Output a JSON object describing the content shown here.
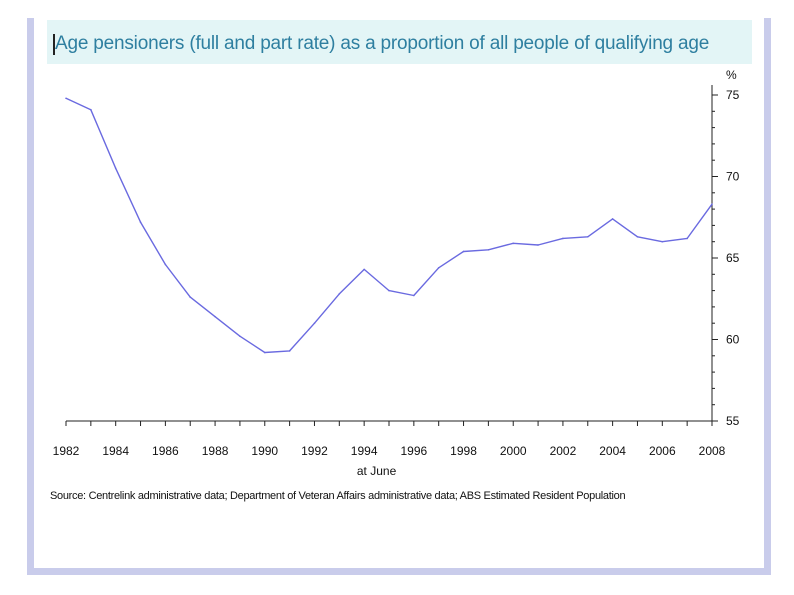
{
  "chart_data": {
    "type": "line",
    "title": "Age pensioners (full and part rate) as a proportion of all people of qualifying age",
    "xlabel": "at June",
    "ylabel": "%",
    "ylim": [
      55,
      75
    ],
    "xlim": [
      1982,
      2008
    ],
    "y_ticks": [
      55,
      60,
      65,
      70,
      75
    ],
    "x_ticks": [
      1982,
      1984,
      1986,
      1988,
      1990,
      1992,
      1994,
      1996,
      1998,
      2000,
      2002,
      2004,
      2006,
      2008
    ],
    "grid": false,
    "series": [
      {
        "name": "Age pensioners",
        "color": "#6a6ae0",
        "x": [
          1982,
          1983,
          1984,
          1985,
          1986,
          1987,
          1988,
          1989,
          1990,
          1991,
          1992,
          1993,
          1994,
          1995,
          1996,
          1997,
          1998,
          1999,
          2000,
          2001,
          2002,
          2003,
          2004,
          2005,
          2006,
          2007,
          2008
        ],
        "values": [
          74.8,
          74.1,
          70.5,
          67.2,
          64.6,
          62.6,
          61.4,
          60.2,
          59.2,
          59.3,
          61.0,
          62.8,
          64.3,
          63.0,
          62.7,
          64.4,
          65.4,
          65.5,
          65.9,
          65.8,
          66.2,
          66.3,
          67.4,
          66.3,
          66.0,
          66.2,
          68.3
        ]
      }
    ],
    "source": "Source: Centrelink administrative data; Department of Veteran Affairs administrative data; ABS Estimated Resident Population"
  }
}
